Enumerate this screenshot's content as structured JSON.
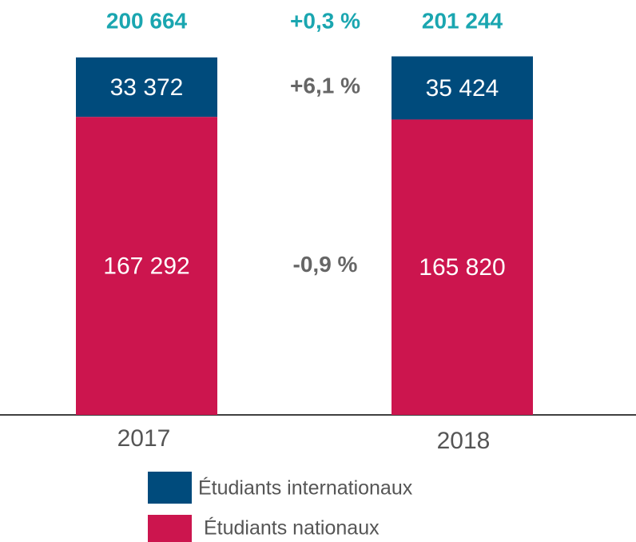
{
  "chart_data": {
    "type": "bar",
    "stacked": true,
    "categories": [
      "2017",
      "2018"
    ],
    "series": [
      {
        "name": "Étudiants nationaux",
        "color": "#cc154e",
        "values": [
          167292,
          165820
        ],
        "value_labels": [
          "167 292",
          "165 820"
        ]
      },
      {
        "name": "Étudiants internationaux",
        "color": "#004b7c",
        "values": [
          33372,
          35424
        ],
        "value_labels": [
          "33 372",
          "35 424"
        ]
      }
    ],
    "totals": [
      200664,
      201244
    ],
    "total_labels": [
      "200 664",
      "201 244"
    ],
    "total_color": "#1aa6b0",
    "annotations": [
      {
        "text": "+0,3 %",
        "color": "#1aa6b0"
      },
      {
        "text": "+6,1 %",
        "color": "#666666"
      },
      {
        "text": "-0,9 %",
        "color": "#666666"
      }
    ],
    "ylim": [
      0,
      210000
    ]
  }
}
